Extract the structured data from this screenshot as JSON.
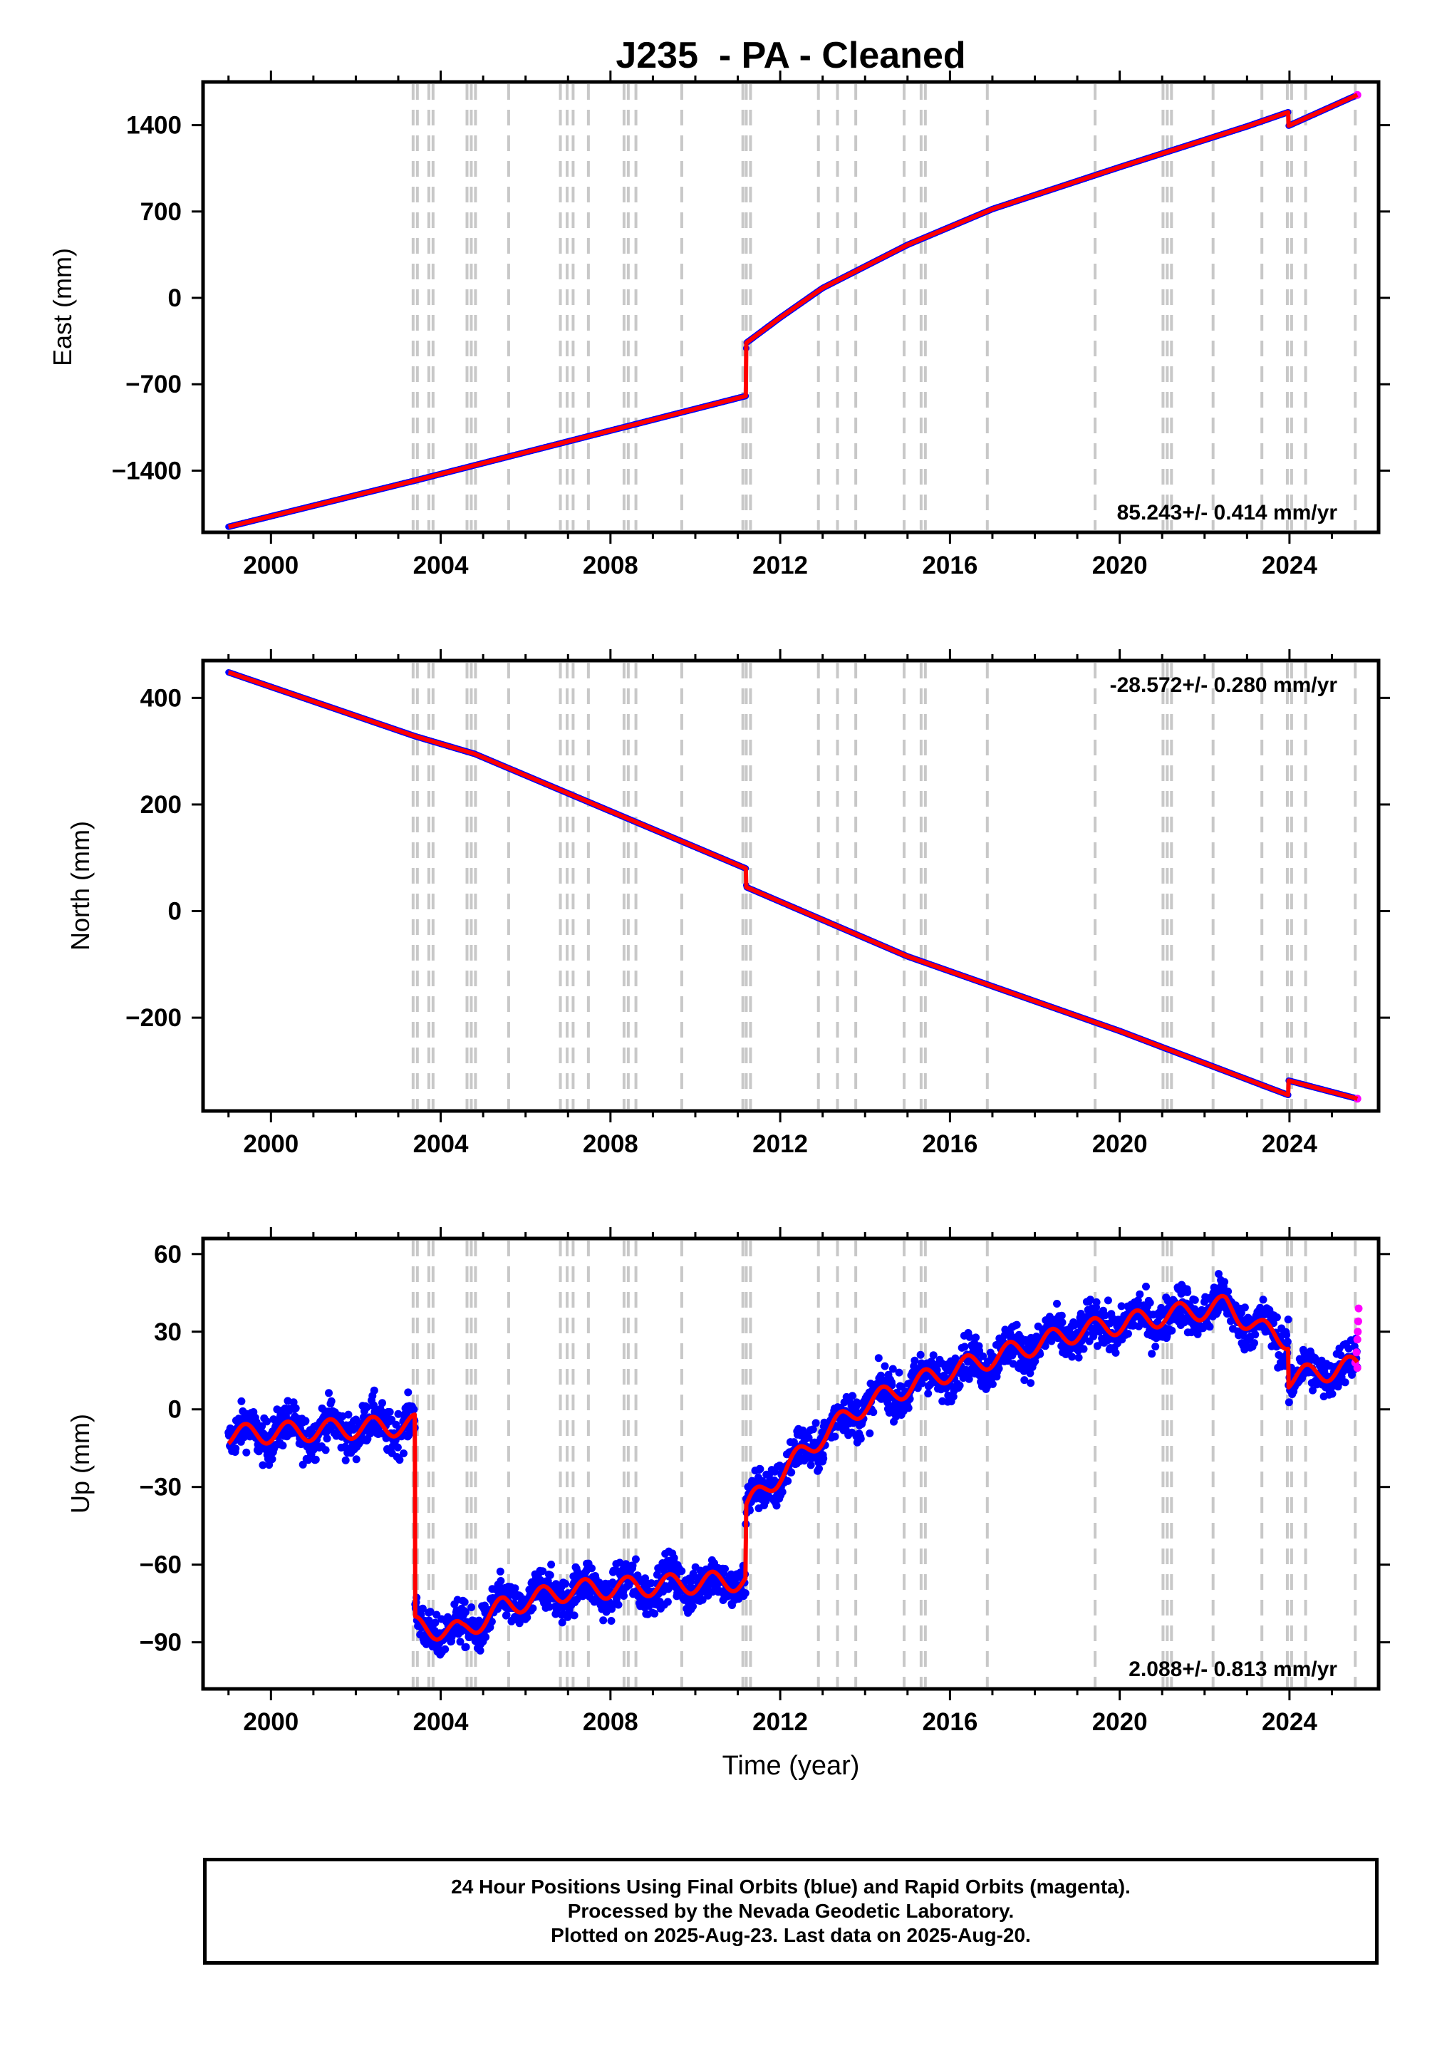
{
  "title": "J235  - PA - Cleaned",
  "footer": {
    "line1": "24 Hour Positions Using Final Orbits (blue) and Rapid Orbits (magenta).",
    "line2": "Processed by the Nevada Geodetic Laboratory.",
    "line3": "Plotted on 2025-Aug-23. Last data on 2025-Aug-20."
  },
  "colors": {
    "final_orbits": "#0000ff",
    "rapid_orbits": "#ff00ff",
    "model": "#ff0000",
    "event_lines": "#c8c8c8"
  },
  "chart_data": [
    {
      "type": "scatter",
      "panel": "east",
      "ylabel": "East (mm)",
      "xlabel": "",
      "xlim": [
        1998.4,
        2026.1
      ],
      "ylim": [
        -1900,
        1750
      ],
      "yticks": [
        -1400,
        -700,
        0,
        700,
        1400
      ],
      "ytick_labels": [
        "−1400",
        "−700",
        "0",
        "700",
        "1400"
      ],
      "xticks": [
        2000,
        2004,
        2008,
        2012,
        2016,
        2020,
        2024
      ],
      "xtick_labels": [
        "2000",
        "2004",
        "2008",
        "2012",
        "2016",
        "2020",
        "2024"
      ],
      "rate_label": "85.243+/- 0.414 mm/yr",
      "rate_position": "bottom-right",
      "steps": [
        {
          "t": 2011.19,
          "value": 430
        },
        {
          "t": 2023.98,
          "value": -110
        }
      ],
      "trend_points": [
        {
          "x": 1999.0,
          "y": -1855
        },
        {
          "x": 2003.4,
          "y": -1480
        },
        {
          "x": 2011.19,
          "y": -795
        },
        {
          "x": 2011.2,
          "y": -365
        },
        {
          "x": 2012.0,
          "y": -160
        },
        {
          "x": 2013.0,
          "y": 80
        },
        {
          "x": 2015.0,
          "y": 430
        },
        {
          "x": 2017.0,
          "y": 720
        },
        {
          "x": 2020.0,
          "y": 1060
        },
        {
          "x": 2023.0,
          "y": 1390
        },
        {
          "x": 2023.97,
          "y": 1505
        },
        {
          "x": 2023.98,
          "y": 1395
        },
        {
          "x": 2025.6,
          "y": 1645
        }
      ]
    },
    {
      "type": "scatter",
      "panel": "north",
      "ylabel": "North (mm)",
      "xlabel": "",
      "xlim": [
        1998.4,
        2026.1
      ],
      "ylim": [
        -375,
        470
      ],
      "yticks": [
        -200,
        0,
        200,
        400
      ],
      "ytick_labels": [
        "−200",
        "0",
        "200",
        "400"
      ],
      "xticks": [
        2000,
        2004,
        2008,
        2012,
        2016,
        2020,
        2024
      ],
      "xtick_labels": [
        "2000",
        "2004",
        "2008",
        "2012",
        "2016",
        "2020",
        "2024"
      ],
      "rate_label": "-28.572+/- 0.280 mm/yr",
      "rate_position": "top-right",
      "steps": [
        {
          "t": 2011.19,
          "value": -35
        },
        {
          "t": 2023.98,
          "value": 30
        }
      ],
      "trend_points": [
        {
          "x": 1999.0,
          "y": 448
        },
        {
          "x": 2003.4,
          "y": 328
        },
        {
          "x": 2004.8,
          "y": 295
        },
        {
          "x": 2011.19,
          "y": 80
        },
        {
          "x": 2011.2,
          "y": 45
        },
        {
          "x": 2015.0,
          "y": -85
        },
        {
          "x": 2020.0,
          "y": -225
        },
        {
          "x": 2023.97,
          "y": -345
        },
        {
          "x": 2023.98,
          "y": -318
        },
        {
          "x": 2025.6,
          "y": -352
        }
      ]
    },
    {
      "type": "scatter",
      "panel": "up",
      "ylabel": "Up (mm)",
      "xlabel": "Time (year)",
      "xlim": [
        1998.4,
        2026.1
      ],
      "ylim": [
        -108,
        66
      ],
      "yticks": [
        -90,
        -60,
        -30,
        0,
        30,
        60
      ],
      "ytick_labels": [
        "−90",
        "−60",
        "−30",
        "0",
        "30",
        "60"
      ],
      "xticks": [
        2000,
        2004,
        2008,
        2012,
        2016,
        2020,
        2024
      ],
      "xtick_labels": [
        "2000",
        "2004",
        "2008",
        "2012",
        "2016",
        "2020",
        "2024"
      ],
      "rate_label": "2.088+/- 0.813 mm/yr",
      "rate_position": "bottom-right",
      "seasonal_amplitude_mm": 4,
      "scatter_spread_mm": 6,
      "steps": [
        {
          "t": 2003.4,
          "value": -82
        },
        {
          "t": 2011.19,
          "value": 26
        },
        {
          "t": 2023.98,
          "value": -14
        }
      ],
      "trend_points": [
        {
          "x": 1999.0,
          "y": -10
        },
        {
          "x": 2003.39,
          "y": -6
        },
        {
          "x": 2003.4,
          "y": -84
        },
        {
          "x": 2004.5,
          "y": -86
        },
        {
          "x": 2005.5,
          "y": -76
        },
        {
          "x": 2007.0,
          "y": -70
        },
        {
          "x": 2011.18,
          "y": -66
        },
        {
          "x": 2011.2,
          "y": -38
        },
        {
          "x": 2012.0,
          "y": -25
        },
        {
          "x": 2013.0,
          "y": -10
        },
        {
          "x": 2014.0,
          "y": 2
        },
        {
          "x": 2015.5,
          "y": 12
        },
        {
          "x": 2017.0,
          "y": 20
        },
        {
          "x": 2019.0,
          "y": 30
        },
        {
          "x": 2021.0,
          "y": 36
        },
        {
          "x": 2022.5,
          "y": 40
        },
        {
          "x": 2023.3,
          "y": 31
        },
        {
          "x": 2023.97,
          "y": 27
        },
        {
          "x": 2023.98,
          "y": 12
        },
        {
          "x": 2025.6,
          "y": 17
        }
      ],
      "rapid_orbit_points": [
        {
          "x": 2025.55,
          "y": 18
        },
        {
          "x": 2025.58,
          "y": 22
        },
        {
          "x": 2025.6,
          "y": 27
        },
        {
          "x": 2025.61,
          "y": 30
        },
        {
          "x": 2025.62,
          "y": 34
        },
        {
          "x": 2025.63,
          "y": 39
        },
        {
          "x": 2025.6,
          "y": 16
        }
      ]
    }
  ],
  "event_line_years": [
    2003.35,
    2003.45,
    2003.72,
    2003.82,
    2004.62,
    2004.72,
    2004.82,
    2005.6,
    2006.82,
    2006.98,
    2007.12,
    2007.48,
    2008.32,
    2008.42,
    2008.6,
    2009.68,
    2011.12,
    2011.2,
    2011.3,
    2012.9,
    2013.35,
    2013.78,
    2014.92,
    2015.32,
    2015.42,
    2016.88,
    2019.42,
    2021.02,
    2021.12,
    2021.22,
    2022.2,
    2023.35,
    2023.95,
    2024.05,
    2024.38,
    2025.55
  ]
}
